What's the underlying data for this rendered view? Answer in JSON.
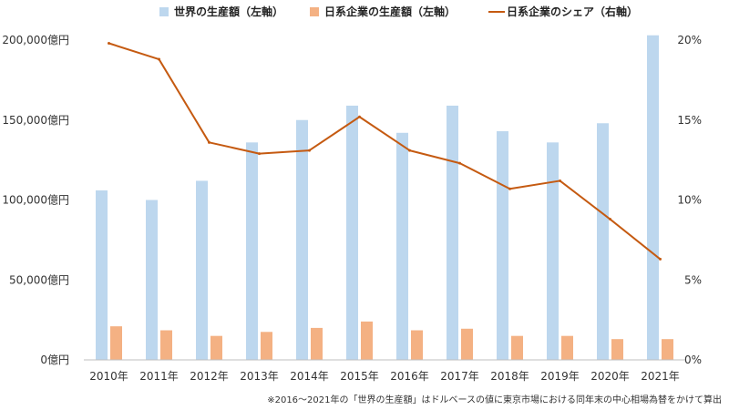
{
  "chart_data": {
    "type": "bar",
    "categories": [
      "2010年",
      "2011年",
      "2012年",
      "2013年",
      "2014年",
      "2015年",
      "2016年",
      "2017年",
      "2018年",
      "2019年",
      "2020年",
      "2021年"
    ],
    "series": [
      {
        "name": "世界の生産額（左軸）",
        "kind": "bar",
        "axis": "left",
        "color": "#bdd7ee",
        "values": [
          106000,
          100000,
          112000,
          136000,
          150000,
          159000,
          142000,
          159000,
          143000,
          136000,
          148000,
          203000
        ]
      },
      {
        "name": "日系企業の生産額（左軸）",
        "kind": "bar",
        "axis": "left",
        "color": "#f4b183",
        "values": [
          21000,
          18500,
          15000,
          17500,
          20000,
          24000,
          18500,
          19500,
          15000,
          15000,
          13000,
          13000
        ]
      },
      {
        "name": "日系企業のシェア（右軸）",
        "kind": "line",
        "axis": "right",
        "color": "#c55a11",
        "values": [
          19.8,
          18.8,
          13.6,
          12.9,
          13.1,
          15.2,
          13.1,
          12.3,
          10.7,
          11.2,
          8.8,
          6.3
        ]
      }
    ],
    "left_axis": {
      "ylim": [
        0,
        200000
      ],
      "ticks": [
        {
          "value": 0,
          "label": "0億円"
        },
        {
          "value": 50000,
          "label": "50,000億円"
        },
        {
          "value": 100000,
          "label": "100,000億円"
        },
        {
          "value": 150000,
          "label": "150,000億円"
        },
        {
          "value": 200000,
          "label": "200,000億円"
        }
      ]
    },
    "right_axis": {
      "ylim": [
        0,
        20
      ],
      "ticks": [
        {
          "value": 0,
          "label": "0%"
        },
        {
          "value": 5,
          "label": "5%"
        },
        {
          "value": 10,
          "label": "10%"
        },
        {
          "value": 15,
          "label": "15%"
        },
        {
          "value": 20,
          "label": "20%"
        }
      ]
    },
    "grid": false,
    "legend_position": "top",
    "footnote": "※2016～2021年の「世界の生産額」はドルベースの値に東京市場における同年末の中心相場為替をかけて算出"
  }
}
